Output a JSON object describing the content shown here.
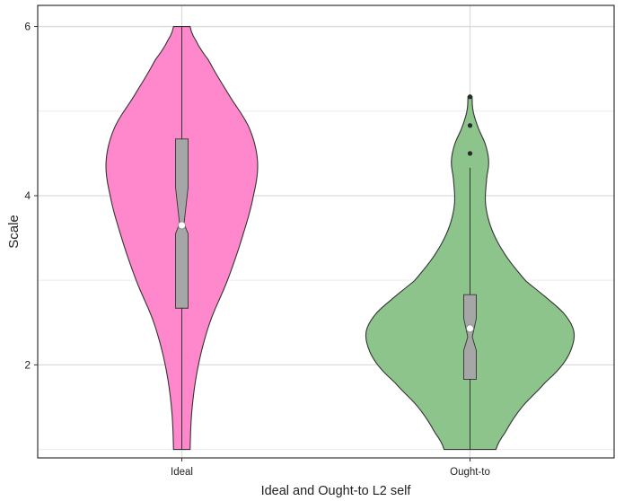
{
  "chart_data": {
    "type": "violin",
    "title": "",
    "xlabel": "Ideal and Ought-to L2 self",
    "ylabel": "Scale",
    "ylim": [
      0.9,
      6.25
    ],
    "yticks": [
      2,
      4,
      6
    ],
    "grid": true,
    "categories": [
      "Ideal",
      "Ought-to"
    ],
    "series": [
      {
        "name": "Ideal",
        "color": "#ff88cc",
        "range": [
          1,
          6
        ],
        "box": {
          "q1": 2.67,
          "median": 3.67,
          "q3": 4.67,
          "mean": 3.65,
          "notch_low": 3.55,
          "notch_high": 4.1,
          "whisker_low": 1,
          "whisker_high": 6
        },
        "outliers": [],
        "density_profile": [
          [
            1.0,
            0.08
          ],
          [
            1.5,
            0.1
          ],
          [
            2.0,
            0.16
          ],
          [
            2.5,
            0.27
          ],
          [
            3.0,
            0.44
          ],
          [
            3.5,
            0.58
          ],
          [
            4.0,
            0.69
          ],
          [
            4.4,
            0.73
          ],
          [
            4.8,
            0.65
          ],
          [
            5.2,
            0.45
          ],
          [
            5.6,
            0.26
          ],
          [
            5.85,
            0.13
          ],
          [
            6.0,
            0.08
          ]
        ]
      },
      {
        "name": "Ought-to",
        "color": "#8cc48c",
        "range": [
          1,
          5.17
        ],
        "box": {
          "q1": 1.83,
          "median": 2.33,
          "q3": 2.83,
          "mean": 2.43,
          "notch_low": 2.17,
          "notch_high": 2.55,
          "whisker_low": 1,
          "whisker_high": 4.33
        },
        "outliers": [
          4.5,
          4.83,
          5.17
        ],
        "density_profile": [
          [
            1.0,
            0.25
          ],
          [
            1.2,
            0.34
          ],
          [
            1.5,
            0.5
          ],
          [
            1.8,
            0.73
          ],
          [
            2.0,
            0.89
          ],
          [
            2.2,
            0.98
          ],
          [
            2.4,
            1.0
          ],
          [
            2.6,
            0.91
          ],
          [
            2.8,
            0.73
          ],
          [
            3.0,
            0.53
          ],
          [
            3.3,
            0.34
          ],
          [
            3.6,
            0.21
          ],
          [
            3.9,
            0.15
          ],
          [
            4.2,
            0.16
          ],
          [
            4.4,
            0.18
          ],
          [
            4.6,
            0.15
          ],
          [
            4.8,
            0.08
          ],
          [
            5.0,
            0.03
          ],
          [
            5.17,
            0.02
          ]
        ]
      }
    ]
  }
}
